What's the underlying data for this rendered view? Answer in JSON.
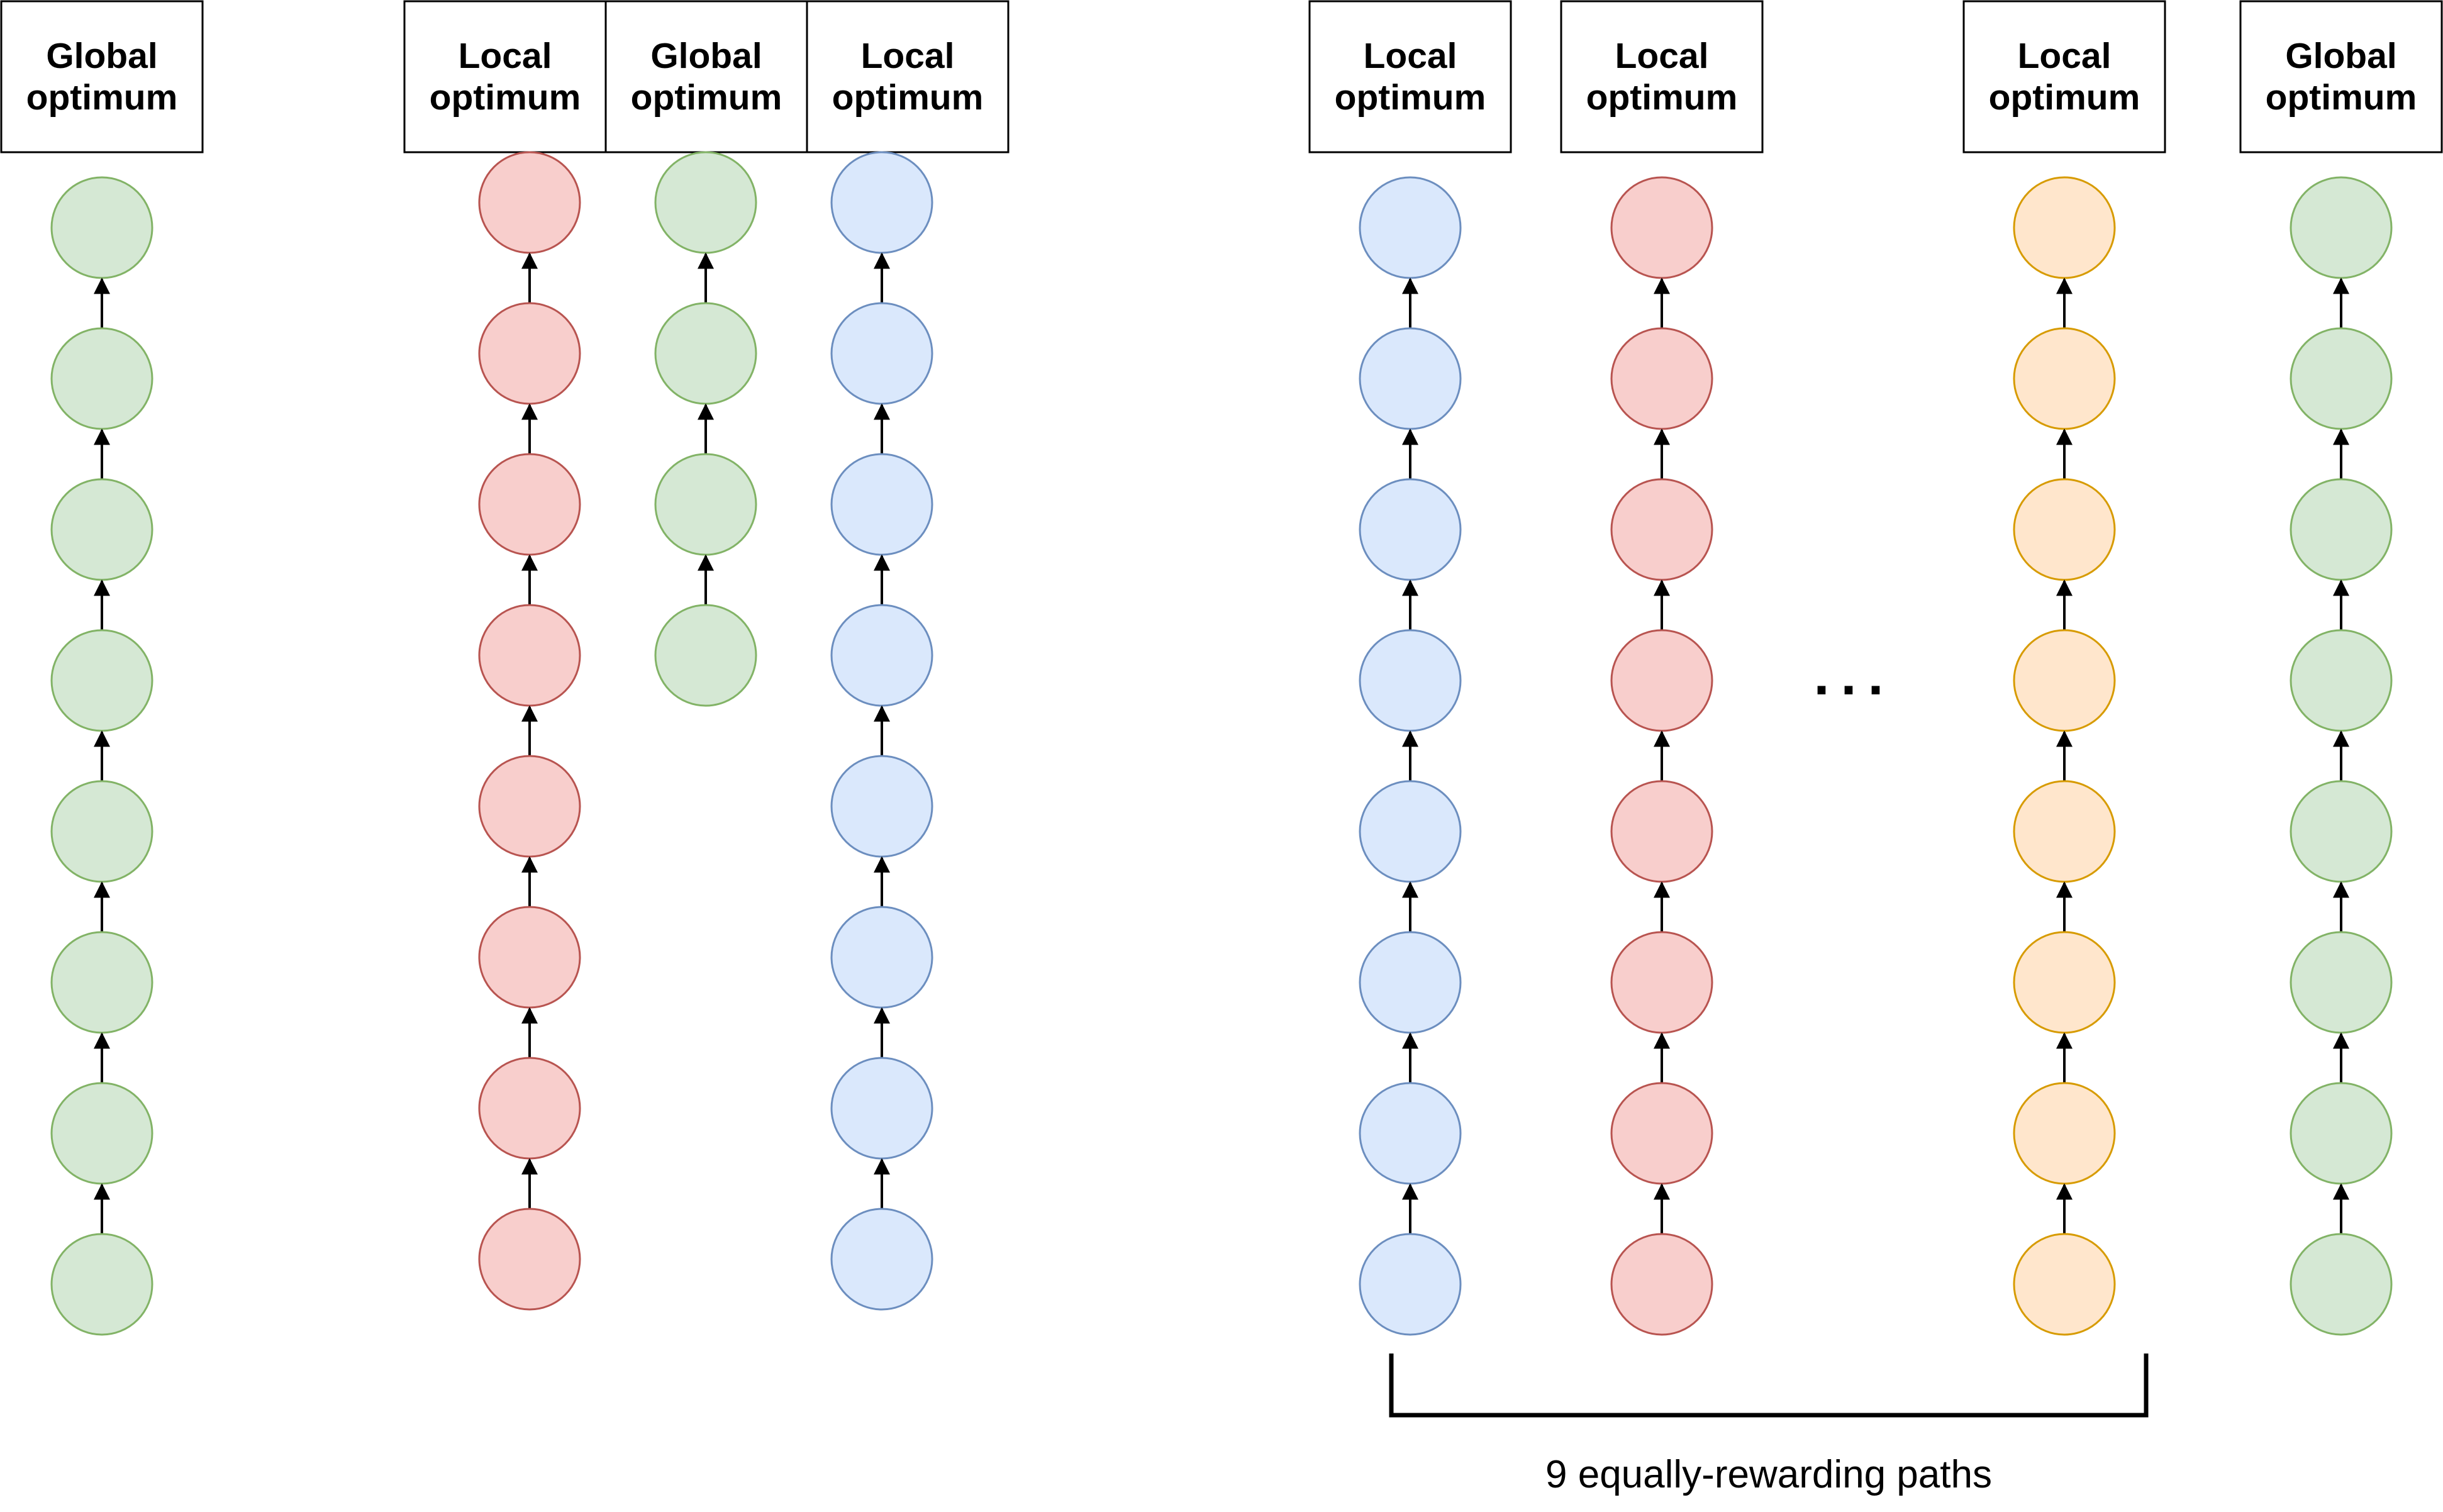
{
  "colors": {
    "green": {
      "fill": "#d5e8d4",
      "stroke": "#82b366"
    },
    "red": {
      "fill": "#f8cecc",
      "stroke": "#b85450"
    },
    "blue": {
      "fill": "#dae8fc",
      "stroke": "#6c8ebf"
    },
    "orange": {
      "fill": "#ffe6cc",
      "stroke": "#d79b00"
    },
    "line": "#000000"
  },
  "panels": [
    {
      "name": "panel-a",
      "boxes": [
        {
          "line1": "Global",
          "line2": "optimum"
        }
      ],
      "chains": [
        {
          "color": "green",
          "nodes": 8
        }
      ]
    },
    {
      "name": "panel-b",
      "boxes": [
        {
          "line1": "Local",
          "line2": "optimum"
        },
        {
          "line1": "Global",
          "line2": "optimum"
        },
        {
          "line1": "Local",
          "line2": "optimum"
        }
      ],
      "chains": [
        {
          "color": "red",
          "nodes": 8
        },
        {
          "color": "green",
          "nodes": 4
        },
        {
          "color": "blue",
          "nodes": 8
        }
      ]
    },
    {
      "name": "panel-c",
      "boxes": [
        {
          "line1": "Local",
          "line2": "optimum"
        },
        {
          "line1": "Local",
          "line2": "optimum"
        },
        {
          "line1": "Local",
          "line2": "optimum"
        },
        {
          "line1": "Global",
          "line2": "optimum"
        }
      ],
      "chains": [
        {
          "color": "blue",
          "nodes": 8
        },
        {
          "color": "red",
          "nodes": 8
        },
        {
          "color": "orange",
          "nodes": 8
        },
        {
          "color": "green",
          "nodes": 8
        }
      ],
      "ellipsis": "...",
      "brace_label": "9 equally-rewarding paths"
    }
  ]
}
